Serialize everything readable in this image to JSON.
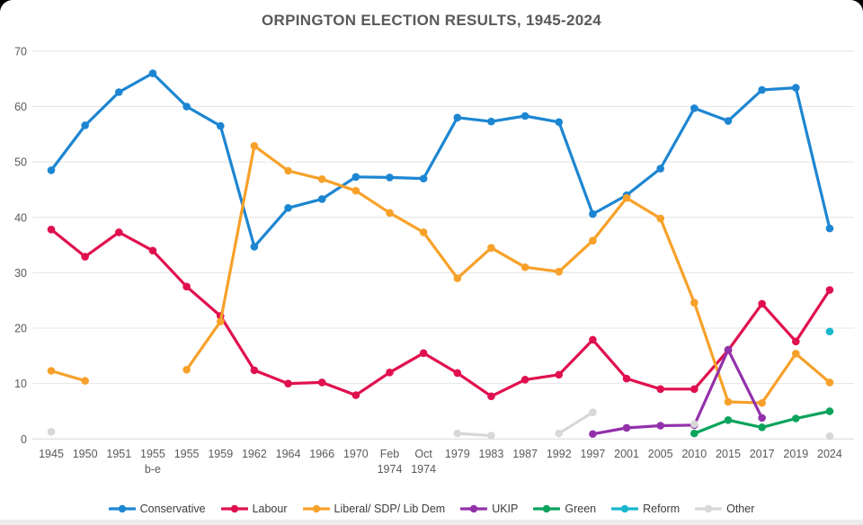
{
  "colors": {
    "background": "#ffffff",
    "title_text": "#595959",
    "axis_text": "#595959",
    "grid": "#e4e4e4",
    "axis_line": "#d8d8d8",
    "legend_text": "#3c3c3c",
    "bottom_bar": "#ececec"
  },
  "chart_data": {
    "type": "line",
    "title": "ORPINGTON ELECTION RESULTS, 1945-2024",
    "xlabel": "",
    "ylabel": "",
    "ylim": [
      0,
      70
    ],
    "yticks": [
      0,
      10,
      20,
      30,
      40,
      50,
      60,
      70
    ],
    "grid": true,
    "legend_position": "bottom",
    "categories": [
      "1945",
      "1950",
      "1951",
      "1955\nb-e",
      "1955",
      "1959",
      "1962",
      "1964",
      "1966",
      "1970",
      "Feb\n1974",
      "Oct\n1974",
      "1979",
      "1983",
      "1987",
      "1992",
      "1997",
      "2001",
      "2005",
      "2010",
      "2015",
      "2017",
      "2019",
      "2024"
    ],
    "series": [
      {
        "name": "Conservative",
        "color": "#1d86d2",
        "values": [
          48.5,
          56.6,
          62.6,
          66,
          60,
          56.5,
          34.7,
          41.7,
          43.3,
          47.3,
          47.2,
          47,
          58,
          57.3,
          58.3,
          57.2,
          40.6,
          44,
          48.8,
          59.7,
          57.4,
          63,
          63.4,
          38
        ]
      },
      {
        "name": "Labour",
        "color": "#e0104e",
        "values": [
          37.8,
          32.9,
          37.3,
          34,
          27.5,
          22.2,
          12.4,
          10,
          10.2,
          7.9,
          12,
          15.5,
          11.9,
          7.7,
          10.7,
          11.6,
          17.9,
          10.9,
          9,
          9,
          16,
          24.4,
          17.6,
          26.9
        ]
      },
      {
        "name": "Liberal/ SDP/ Lib Dem",
        "color": "#f7a12a",
        "values": [
          12.3,
          10.5,
          null,
          null,
          12.5,
          21.2,
          52.9,
          48.4,
          46.9,
          44.8,
          40.8,
          37.3,
          29,
          34.5,
          31,
          30.2,
          35.8,
          43.5,
          39.8,
          24.6,
          6.7,
          6.5,
          15.4,
          10.2
        ]
      },
      {
        "name": "UKIP",
        "color": "#9331ab",
        "values": [
          null,
          null,
          null,
          null,
          null,
          null,
          null,
          null,
          null,
          null,
          null,
          null,
          null,
          null,
          null,
          null,
          0.9,
          2,
          2.4,
          2.5,
          16.1,
          3.8,
          null,
          null
        ]
      },
      {
        "name": "Green",
        "color": "#0ca45c",
        "values": [
          null,
          null,
          null,
          null,
          null,
          null,
          null,
          null,
          null,
          null,
          null,
          null,
          null,
          null,
          null,
          null,
          null,
          null,
          null,
          1,
          3.4,
          2.1,
          3.7,
          5
        ]
      },
      {
        "name": "Reform",
        "color": "#18b7cd",
        "values": [
          null,
          null,
          null,
          null,
          null,
          null,
          null,
          null,
          null,
          null,
          null,
          null,
          null,
          null,
          null,
          null,
          null,
          null,
          null,
          null,
          null,
          null,
          null,
          19.4
        ]
      },
      {
        "name": "Other",
        "color": "#d8d8d8",
        "values": [
          1.3,
          null,
          null,
          null,
          null,
          null,
          null,
          null,
          null,
          null,
          null,
          null,
          1,
          0.6,
          null,
          1,
          4.8,
          null,
          null,
          2.7,
          null,
          null,
          null,
          0.5
        ]
      }
    ]
  }
}
